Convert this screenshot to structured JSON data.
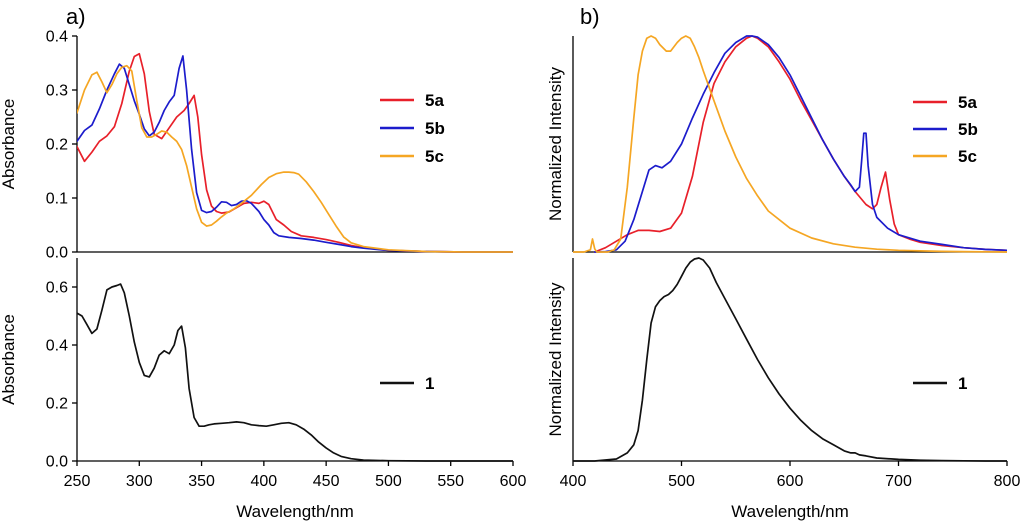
{
  "colors": {
    "5a": "#e8202a",
    "5b": "#1c1ccc",
    "5c": "#f5a623",
    "1": "#111111"
  },
  "chart_data": [
    {
      "id": "a-top",
      "panel_label": "a)",
      "type": "line",
      "ylabel": "Absorbance",
      "xlim": [
        250,
        600
      ],
      "ylim": [
        0,
        0.4
      ],
      "yticks": [
        "0.0",
        "0.1",
        "0.2",
        "0.3",
        "0.4"
      ],
      "ytick_values": [
        0,
        0.1,
        0.2,
        0.3,
        0.4
      ],
      "series": [
        {
          "name": "5a",
          "color": "#e8202a",
          "x": [
            250,
            256,
            262,
            268,
            274,
            280,
            286,
            292,
            296,
            300,
            304,
            308,
            312,
            318,
            324,
            330,
            336,
            340,
            344,
            347,
            350,
            354,
            358,
            362,
            366,
            372,
            378,
            384,
            390,
            396,
            400,
            404,
            410,
            416,
            422,
            430,
            440,
            450,
            460,
            470,
            480,
            500,
            530,
            560,
            600
          ],
          "y": [
            0.195,
            0.168,
            0.185,
            0.205,
            0.215,
            0.232,
            0.275,
            0.335,
            0.362,
            0.367,
            0.33,
            0.26,
            0.218,
            0.21,
            0.23,
            0.25,
            0.262,
            0.275,
            0.29,
            0.25,
            0.18,
            0.115,
            0.085,
            0.075,
            0.072,
            0.074,
            0.082,
            0.09,
            0.092,
            0.09,
            0.094,
            0.088,
            0.06,
            0.05,
            0.038,
            0.03,
            0.027,
            0.023,
            0.018,
            0.012,
            0.008,
            0.003,
            0.001,
            0.0,
            0.0
          ]
        },
        {
          "name": "5b",
          "color": "#1c1ccc",
          "x": [
            250,
            256,
            262,
            268,
            274,
            280,
            284,
            288,
            292,
            296,
            300,
            304,
            308,
            312,
            316,
            320,
            324,
            328,
            332,
            335,
            338,
            342,
            346,
            350,
            354,
            358,
            362,
            366,
            370,
            374,
            378,
            382,
            386,
            390,
            396,
            400,
            404,
            408,
            412,
            420,
            430,
            440,
            450,
            460,
            470,
            480,
            500,
            530,
            560,
            600
          ],
          "y": [
            0.205,
            0.225,
            0.235,
            0.265,
            0.3,
            0.33,
            0.348,
            0.34,
            0.31,
            0.28,
            0.255,
            0.228,
            0.215,
            0.222,
            0.24,
            0.262,
            0.278,
            0.29,
            0.34,
            0.363,
            0.3,
            0.19,
            0.11,
            0.077,
            0.073,
            0.075,
            0.083,
            0.093,
            0.092,
            0.086,
            0.088,
            0.094,
            0.095,
            0.09,
            0.075,
            0.06,
            0.05,
            0.036,
            0.03,
            0.027,
            0.025,
            0.022,
            0.018,
            0.014,
            0.01,
            0.007,
            0.003,
            0.001,
            0.0,
            0.0
          ]
        },
        {
          "name": "5c",
          "color": "#f5a623",
          "x": [
            250,
            256,
            262,
            266,
            270,
            274,
            278,
            282,
            286,
            290,
            294,
            298,
            302,
            306,
            310,
            314,
            318,
            322,
            326,
            330,
            334,
            338,
            342,
            346,
            350,
            354,
            358,
            362,
            366,
            370,
            376,
            382,
            390,
            398,
            404,
            410,
            416,
            420,
            424,
            428,
            434,
            440,
            446,
            452,
            458,
            464,
            470,
            480,
            500,
            530,
            560,
            600
          ],
          "y": [
            0.258,
            0.3,
            0.328,
            0.333,
            0.315,
            0.295,
            0.31,
            0.33,
            0.342,
            0.345,
            0.335,
            0.28,
            0.23,
            0.213,
            0.213,
            0.218,
            0.224,
            0.222,
            0.213,
            0.205,
            0.19,
            0.16,
            0.12,
            0.08,
            0.055,
            0.048,
            0.05,
            0.057,
            0.065,
            0.072,
            0.08,
            0.09,
            0.105,
            0.125,
            0.138,
            0.145,
            0.148,
            0.148,
            0.147,
            0.144,
            0.13,
            0.112,
            0.092,
            0.07,
            0.048,
            0.028,
            0.017,
            0.01,
            0.004,
            0.001,
            0.0,
            0.0
          ]
        }
      ],
      "legend": [
        "5a",
        "5b",
        "5c"
      ]
    },
    {
      "id": "a-bottom",
      "type": "line",
      "xlabel": "Wavelength/nm",
      "ylabel": "Absorbance",
      "xlim": [
        250,
        600
      ],
      "ylim": [
        0,
        0.7
      ],
      "xticks": [
        "250",
        "300",
        "350",
        "400",
        "450",
        "500",
        "550",
        "600"
      ],
      "xtick_values": [
        250,
        300,
        350,
        400,
        450,
        500,
        550,
        600
      ],
      "yticks": [
        "0.0",
        "0.2",
        "0.4",
        "0.6"
      ],
      "ytick_values": [
        0,
        0.2,
        0.4,
        0.6
      ],
      "series": [
        {
          "name": "1",
          "color": "#111111",
          "x": [
            250,
            254,
            258,
            262,
            266,
            270,
            274,
            278,
            282,
            285,
            288,
            292,
            296,
            300,
            304,
            308,
            312,
            316,
            320,
            324,
            328,
            331,
            334,
            337,
            340,
            344,
            348,
            352,
            356,
            360,
            366,
            372,
            378,
            384,
            390,
            396,
            402,
            408,
            414,
            420,
            426,
            432,
            438,
            444,
            450,
            456,
            462,
            470,
            480,
            500,
            530,
            560,
            600
          ],
          "y": [
            0.51,
            0.5,
            0.47,
            0.44,
            0.455,
            0.52,
            0.59,
            0.6,
            0.605,
            0.61,
            0.58,
            0.5,
            0.41,
            0.34,
            0.295,
            0.29,
            0.32,
            0.365,
            0.38,
            0.37,
            0.4,
            0.45,
            0.465,
            0.39,
            0.25,
            0.15,
            0.12,
            0.12,
            0.125,
            0.128,
            0.13,
            0.132,
            0.135,
            0.132,
            0.125,
            0.122,
            0.12,
            0.125,
            0.13,
            0.132,
            0.125,
            0.11,
            0.09,
            0.065,
            0.045,
            0.028,
            0.016,
            0.008,
            0.003,
            0.001,
            0.0,
            0.0,
            0.0
          ]
        }
      ],
      "legend": [
        "1"
      ]
    },
    {
      "id": "b-top",
      "panel_label": "b)",
      "type": "line",
      "ylabel": "Normalized Intensity",
      "xlim": [
        400,
        800
      ],
      "ylim": [
        0,
        1.0
      ],
      "series": [
        {
          "name": "5a",
          "color": "#e8202a",
          "x": [
            420,
            430,
            440,
            450,
            460,
            470,
            480,
            490,
            500,
            510,
            520,
            530,
            540,
            550,
            560,
            565,
            570,
            580,
            590,
            600,
            610,
            620,
            630,
            640,
            650,
            660,
            670,
            676,
            680,
            684,
            688,
            692,
            696,
            700,
            710,
            720,
            740,
            760,
            780,
            800
          ],
          "y": [
            0.0,
            0.02,
            0.05,
            0.08,
            0.1,
            0.1,
            0.095,
            0.11,
            0.18,
            0.35,
            0.6,
            0.78,
            0.88,
            0.95,
            0.99,
            1.0,
            0.99,
            0.95,
            0.88,
            0.8,
            0.7,
            0.61,
            0.52,
            0.43,
            0.35,
            0.28,
            0.22,
            0.2,
            0.22,
            0.3,
            0.37,
            0.24,
            0.13,
            0.08,
            0.06,
            0.045,
            0.03,
            0.02,
            0.012,
            0.008
          ]
        },
        {
          "name": "5b",
          "color": "#1c1ccc",
          "x": [
            420,
            430,
            440,
            448,
            456,
            464,
            470,
            476,
            482,
            490,
            500,
            510,
            520,
            530,
            540,
            550,
            560,
            565,
            570,
            580,
            590,
            600,
            610,
            620,
            630,
            640,
            650,
            656,
            660,
            664,
            666,
            668,
            670,
            672,
            676,
            680,
            690,
            700,
            720,
            740,
            760,
            780,
            800
          ],
          "y": [
            0.0,
            0.002,
            0.01,
            0.05,
            0.15,
            0.28,
            0.38,
            0.4,
            0.39,
            0.42,
            0.5,
            0.62,
            0.73,
            0.83,
            0.92,
            0.97,
            1.0,
            1.0,
            0.995,
            0.96,
            0.9,
            0.82,
            0.72,
            0.62,
            0.52,
            0.43,
            0.35,
            0.31,
            0.28,
            0.3,
            0.42,
            0.55,
            0.55,
            0.4,
            0.22,
            0.16,
            0.11,
            0.08,
            0.05,
            0.035,
            0.02,
            0.012,
            0.008
          ]
        },
        {
          "name": "5c",
          "color": "#f5a623",
          "x": [
            400,
            410,
            416,
            418,
            420,
            422,
            426,
            432,
            438,
            444,
            450,
            456,
            460,
            464,
            468,
            472,
            476,
            480,
            486,
            490,
            496,
            500,
            504,
            508,
            512,
            516,
            520,
            530,
            540,
            550,
            560,
            570,
            580,
            600,
            620,
            640,
            660,
            680,
            700,
            720,
            740,
            760,
            780,
            800
          ],
          "y": [
            0.0,
            0.0,
            0.01,
            0.06,
            0.015,
            0.0,
            0.0,
            0.0,
            0.01,
            0.06,
            0.3,
            0.62,
            0.82,
            0.93,
            0.99,
            1.0,
            0.99,
            0.96,
            0.93,
            0.93,
            0.97,
            0.99,
            1.0,
            0.99,
            0.95,
            0.9,
            0.84,
            0.7,
            0.56,
            0.44,
            0.34,
            0.26,
            0.19,
            0.11,
            0.065,
            0.038,
            0.022,
            0.013,
            0.008,
            0.005,
            0.003,
            0.002,
            0.001,
            0.0
          ]
        }
      ],
      "legend": [
        "5a",
        "5b",
        "5c"
      ]
    },
    {
      "id": "b-bottom",
      "type": "line",
      "xlabel": "Wavelength/nm",
      "ylabel": "Normalized Intensity",
      "xlim": [
        400,
        800
      ],
      "ylim": [
        0,
        1.0
      ],
      "xticks": [
        "400",
        "500",
        "600",
        "700",
        "800"
      ],
      "xtick_values": [
        400,
        500,
        600,
        700,
        800
      ],
      "series": [
        {
          "name": "1",
          "color": "#111111",
          "x": [
            400,
            420,
            440,
            450,
            456,
            460,
            464,
            468,
            472,
            476,
            480,
            484,
            488,
            492,
            496,
            500,
            504,
            508,
            512,
            516,
            520,
            526,
            532,
            540,
            550,
            560,
            570,
            580,
            590,
            600,
            610,
            620,
            630,
            640,
            650,
            656,
            660,
            664,
            670,
            680,
            700,
            720,
            740,
            760,
            780,
            800
          ],
          "y": [
            0.0,
            0.0,
            0.01,
            0.04,
            0.08,
            0.15,
            0.3,
            0.5,
            0.68,
            0.76,
            0.79,
            0.81,
            0.82,
            0.84,
            0.87,
            0.91,
            0.95,
            0.98,
            0.995,
            1.0,
            0.99,
            0.95,
            0.88,
            0.8,
            0.7,
            0.6,
            0.5,
            0.41,
            0.33,
            0.26,
            0.2,
            0.15,
            0.11,
            0.08,
            0.05,
            0.04,
            0.04,
            0.03,
            0.025,
            0.015,
            0.008,
            0.004,
            0.002,
            0.001,
            0.0,
            0.0
          ]
        }
      ],
      "legend": [
        "1"
      ]
    }
  ]
}
